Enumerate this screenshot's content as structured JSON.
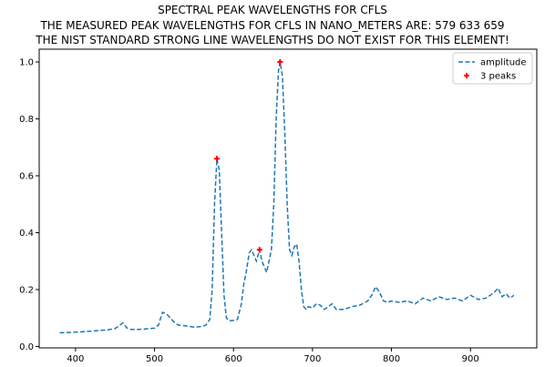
{
  "chart_data": {
    "type": "line",
    "title_lines": [
      "SPECTRAL PEAK WAVELENGTHS FOR CFLS",
      "THE MEASURED PEAK WAVELENGTHS FOR CFLS IN NANO_METERS ARE: 579 633 659",
      "THE NIST STANDARD STRONG LINE WAVELENGTHS DO NOT EXIST FOR THIS ELEMENT!"
    ],
    "xlabel": "",
    "ylabel": "",
    "xlim": [
      354,
      984
    ],
    "ylim": [
      -0.005,
      1.045
    ],
    "xticks": [
      400,
      500,
      600,
      700,
      800,
      900
    ],
    "yticks": [
      0.0,
      0.2,
      0.4,
      0.6,
      0.8,
      1.0
    ],
    "ytick_labels": [
      "0.0",
      "0.2",
      "0.4",
      "0.6",
      "0.8",
      "1.0"
    ],
    "grid": false,
    "legend_position": "top-right",
    "series": [
      {
        "name": "amplitude",
        "style": "dashed",
        "color": "#1f77b4",
        "x": [
          380,
          390,
          400,
          410,
          420,
          430,
          440,
          450,
          455,
          460,
          465,
          470,
          480,
          490,
          500,
          505,
          510,
          515,
          520,
          525,
          530,
          540,
          550,
          560,
          565,
          570,
          573,
          576,
          579,
          582,
          585,
          588,
          591,
          595,
          600,
          605,
          610,
          613,
          616,
          620,
          623,
          626,
          629,
          633,
          636,
          639,
          642,
          645,
          648,
          651,
          654,
          657,
          659,
          662,
          665,
          668,
          671,
          674,
          677,
          680,
          683,
          686,
          689,
          692,
          695,
          700,
          705,
          710,
          715,
          720,
          725,
          730,
          740,
          750,
          760,
          770,
          775,
          780,
          785,
          790,
          795,
          800,
          810,
          820,
          830,
          840,
          850,
          860,
          870,
          880,
          890,
          900,
          910,
          920,
          925,
          930,
          935,
          940,
          945,
          950,
          955
        ],
        "y": [
          0.048,
          0.049,
          0.05,
          0.052,
          0.054,
          0.056,
          0.058,
          0.063,
          0.072,
          0.083,
          0.065,
          0.06,
          0.06,
          0.062,
          0.064,
          0.075,
          0.12,
          0.115,
          0.1,
          0.085,
          0.075,
          0.072,
          0.068,
          0.07,
          0.075,
          0.095,
          0.2,
          0.5,
          0.66,
          0.62,
          0.4,
          0.18,
          0.1,
          0.09,
          0.092,
          0.095,
          0.15,
          0.22,
          0.26,
          0.33,
          0.34,
          0.32,
          0.3,
          0.34,
          0.3,
          0.28,
          0.26,
          0.3,
          0.34,
          0.5,
          0.8,
          0.97,
          1.0,
          0.95,
          0.75,
          0.5,
          0.34,
          0.32,
          0.35,
          0.36,
          0.3,
          0.2,
          0.14,
          0.13,
          0.14,
          0.135,
          0.15,
          0.145,
          0.13,
          0.14,
          0.15,
          0.13,
          0.13,
          0.14,
          0.145,
          0.16,
          0.18,
          0.21,
          0.19,
          0.16,
          0.155,
          0.16,
          0.155,
          0.16,
          0.15,
          0.17,
          0.16,
          0.175,
          0.165,
          0.17,
          0.16,
          0.18,
          0.165,
          0.17,
          0.18,
          0.19,
          0.205,
          0.175,
          0.185,
          0.17,
          0.18
        ]
      },
      {
        "name": "3 peaks",
        "style": "markers",
        "marker": "+",
        "color": "#ff0000",
        "x": [
          579,
          633,
          659
        ],
        "y": [
          0.66,
          0.34,
          1.0
        ]
      }
    ]
  }
}
